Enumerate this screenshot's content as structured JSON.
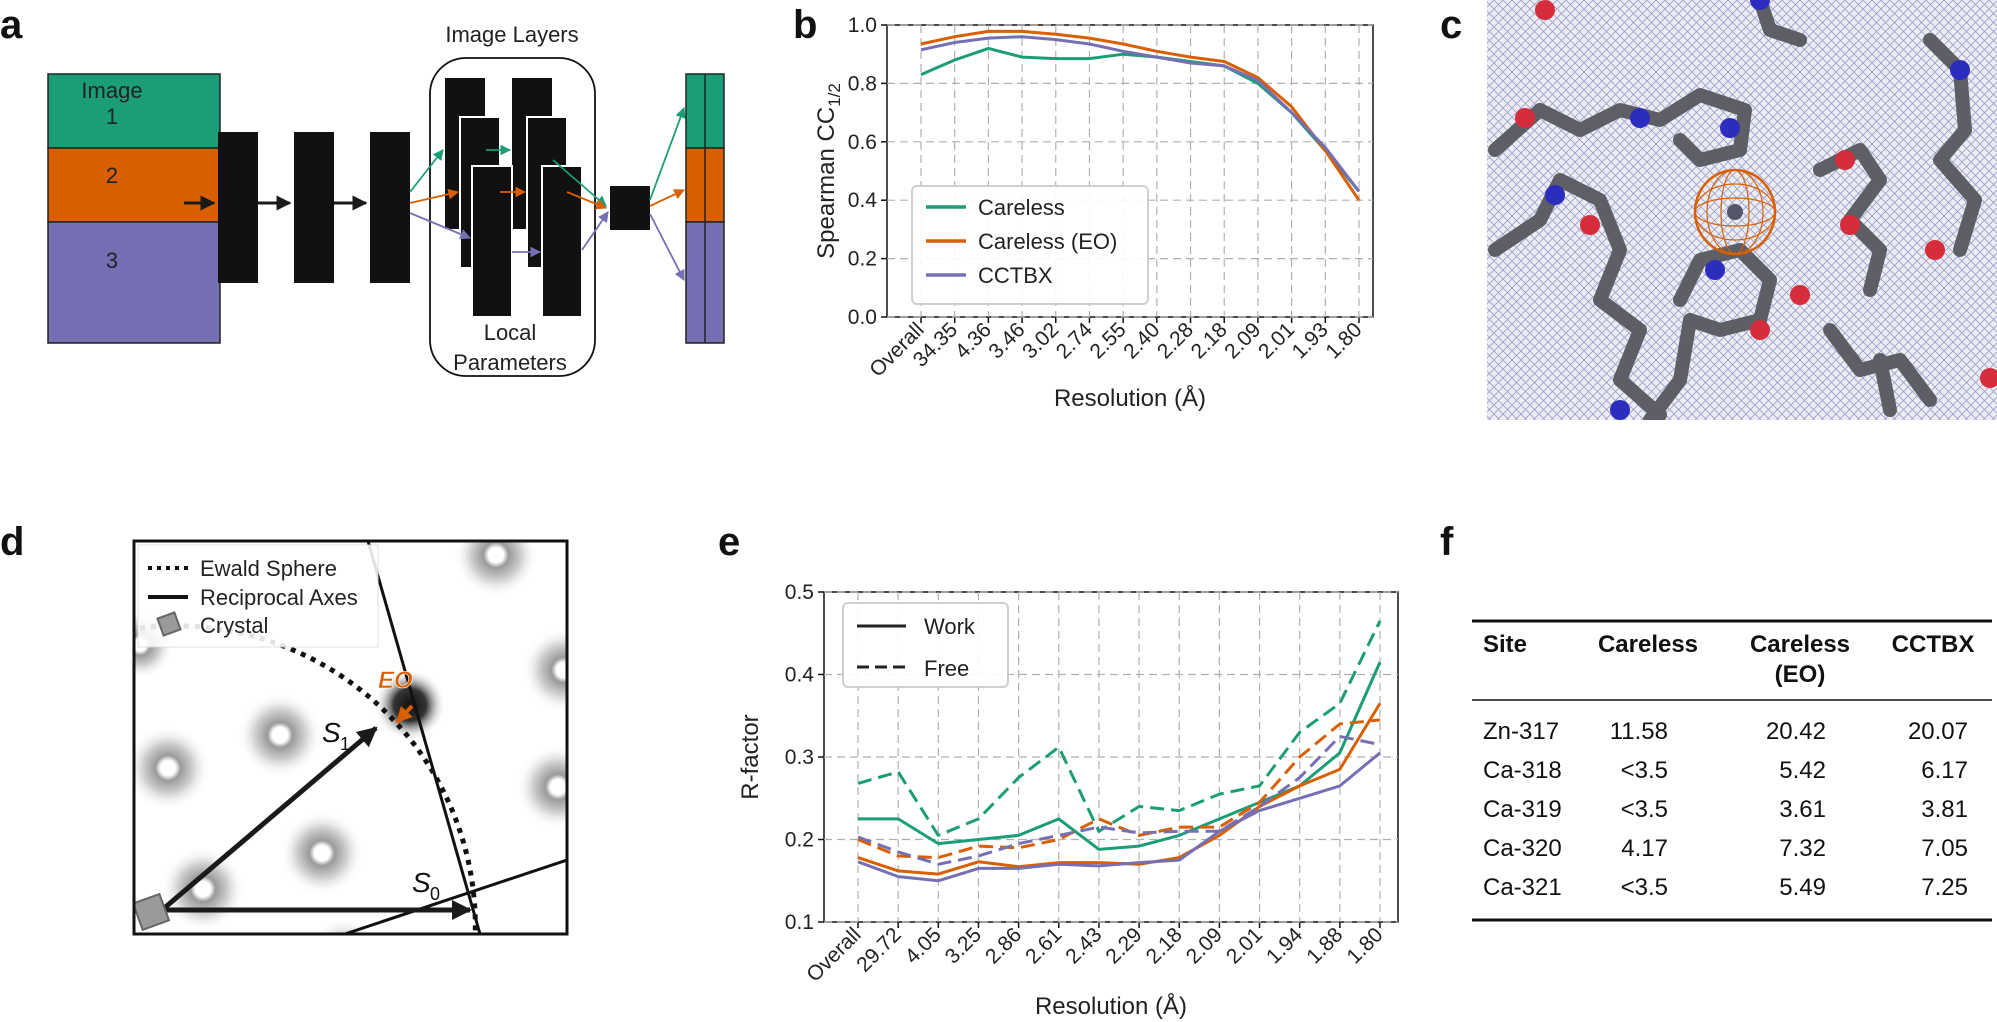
{
  "colors": {
    "careless": "#1b9e77",
    "careless_eo": "#d95f02",
    "cctbx": "#7570b3",
    "grid": "#b0b0b0",
    "dark": "#1a1a1a",
    "crystal_bg": "#ffffff"
  },
  "panel_labels": {
    "a": "a",
    "b": "b",
    "c": "c",
    "d": "d",
    "e": "e",
    "f": "f"
  },
  "panel_a": {
    "stack_labels": [
      "Image",
      "1",
      "2",
      "3"
    ],
    "image_layers_title": "Image Layers",
    "local_params_line1": "Local",
    "local_params_line2": "Parameters"
  },
  "panel_c": {
    "description_icon": "electron-density-map-image"
  },
  "panel_d": {
    "legend": [
      "Ewald Sphere",
      "Reciprocal Axes",
      "Crystal"
    ],
    "eo_label": "EO",
    "s1_label": "S",
    "s1_sub": "1",
    "s0_label": "S",
    "s0_sub": "0"
  },
  "panel_f": {
    "headers": [
      "Site",
      "Careless",
      "Careless",
      "(EO)",
      "CCTBX"
    ],
    "rows": [
      [
        "Zn-317",
        "11.58",
        "20.42",
        "20.07"
      ],
      [
        "Ca-318",
        "<3.5",
        "5.42",
        "6.17"
      ],
      [
        "Ca-319",
        "<3.5",
        "3.61",
        "3.81"
      ],
      [
        "Ca-320",
        "4.17",
        "7.32",
        "7.05"
      ],
      [
        "Ca-321",
        "<3.5",
        "5.49",
        "7.25"
      ]
    ]
  },
  "chart_data": [
    {
      "type": "line",
      "panel": "b",
      "title": "",
      "ylabel_main": "Spearman CC",
      "ylabel_sub": "1/2",
      "xlabel": "Resolution (Å)",
      "categories": [
        "Overall",
        "34.35",
        "4.36",
        "3.46",
        "3.02",
        "2.74",
        "2.55",
        "2.40",
        "2.28",
        "2.18",
        "2.09",
        "2.01",
        "1.93",
        "1.80"
      ],
      "ylim": [
        0.0,
        1.0
      ],
      "yticks": [
        "0.0",
        "0.2",
        "0.4",
        "0.6",
        "0.8",
        "1.0"
      ],
      "grid": true,
      "legend_position": "lower-left",
      "series": [
        {
          "name": "Careless",
          "color": "#1b9e77",
          "dash": "solid",
          "values": [
            0.83,
            0.88,
            0.92,
            0.89,
            0.885,
            0.885,
            0.9,
            0.89,
            0.875,
            0.86,
            0.8,
            0.7,
            0.57,
            0.43
          ]
        },
        {
          "name": "Careless (EO)",
          "color": "#d95f02",
          "dash": "solid",
          "values": [
            0.935,
            0.96,
            0.978,
            0.978,
            0.968,
            0.955,
            0.935,
            0.91,
            0.89,
            0.875,
            0.82,
            0.72,
            0.57,
            0.4
          ]
        },
        {
          "name": "CCTBX",
          "color": "#7570b3",
          "dash": "solid",
          "values": [
            0.915,
            0.94,
            0.955,
            0.96,
            0.95,
            0.935,
            0.91,
            0.89,
            0.87,
            0.86,
            0.81,
            0.7,
            0.58,
            0.43
          ]
        }
      ]
    },
    {
      "type": "line",
      "panel": "e",
      "title": "",
      "ylabel": "R-factor",
      "xlabel": "Resolution (Å)",
      "categories": [
        "Overall",
        "29.72",
        "4.05",
        "3.25",
        "2.86",
        "2.61",
        "2.43",
        "2.29",
        "2.18",
        "2.09",
        "2.01",
        "1.94",
        "1.88",
        "1.80"
      ],
      "ylim": [
        0.1,
        0.5
      ],
      "yticks": [
        "0.1",
        "0.2",
        "0.3",
        "0.4",
        "0.5"
      ],
      "grid": true,
      "legend_position": "top-left",
      "legend": [
        "Work",
        "Free"
      ],
      "series": [
        {
          "name": "Careless Work",
          "color": "#1b9e77",
          "dash": "solid",
          "values": [
            0.225,
            0.225,
            0.195,
            0.2,
            0.205,
            0.225,
            0.188,
            0.192,
            0.205,
            0.225,
            0.245,
            0.265,
            0.305,
            0.415
          ]
        },
        {
          "name": "Careless Free",
          "color": "#1b9e77",
          "dash": "dashed",
          "values": [
            0.268,
            0.282,
            0.205,
            0.225,
            0.275,
            0.312,
            0.21,
            0.24,
            0.235,
            0.255,
            0.265,
            0.33,
            0.365,
            0.465
          ]
        },
        {
          "name": "Careless (EO) Work",
          "color": "#d95f02",
          "dash": "solid",
          "values": [
            0.178,
            0.162,
            0.158,
            0.173,
            0.167,
            0.172,
            0.172,
            0.17,
            0.178,
            0.205,
            0.24,
            0.265,
            0.285,
            0.365
          ]
        },
        {
          "name": "Careless (EO) Free",
          "color": "#d95f02",
          "dash": "dashed",
          "values": [
            0.2,
            0.18,
            0.178,
            0.192,
            0.19,
            0.2,
            0.225,
            0.205,
            0.215,
            0.215,
            0.245,
            0.3,
            0.34,
            0.345
          ]
        },
        {
          "name": "CCTBX Work",
          "color": "#7570b3",
          "dash": "solid",
          "values": [
            0.173,
            0.155,
            0.15,
            0.165,
            0.165,
            0.17,
            0.168,
            0.172,
            0.175,
            0.21,
            0.235,
            0.25,
            0.265,
            0.305
          ]
        },
        {
          "name": "CCTBX Free",
          "color": "#7570b3",
          "dash": "dashed",
          "values": [
            0.203,
            0.185,
            0.17,
            0.18,
            0.195,
            0.205,
            0.215,
            0.208,
            0.21,
            0.21,
            0.24,
            0.275,
            0.325,
            0.315
          ]
        }
      ]
    }
  ]
}
